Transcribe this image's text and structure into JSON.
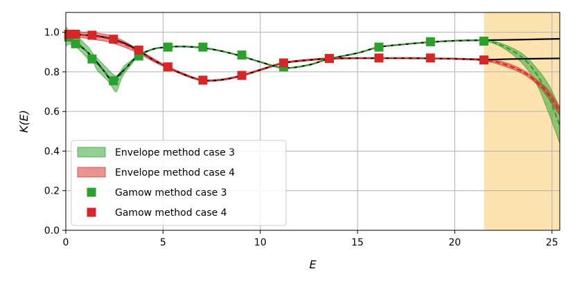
{
  "chart_data": {
    "type": "line",
    "title": "",
    "xlabel": "E",
    "ylabel": "K(E)",
    "xlim": [
      0,
      25.4
    ],
    "ylim": [
      0,
      1.1
    ],
    "x_ticks": [
      0,
      5,
      10,
      15,
      20,
      25
    ],
    "y_ticks": [
      0.0,
      0.2,
      0.4,
      0.6,
      0.8,
      1.0
    ],
    "x_tick_labels": [
      "0",
      "5",
      "10",
      "15",
      "20",
      "25"
    ],
    "y_tick_labels": [
      "0.0",
      "0.2",
      "0.4",
      "0.6",
      "0.8",
      "1.0"
    ],
    "grid": true,
    "legend_position": "lower-left",
    "highlight_region": {
      "x_from": 21.5,
      "x_to": 25.4,
      "color": "#fde3b0"
    },
    "exact_curves": [
      {
        "color": "#000000",
        "x": [
          0,
          0.5,
          1.0,
          1.5,
          2.0,
          2.4,
          3.0,
          3.7,
          4.5,
          5.2,
          6.0,
          7.0,
          8.0,
          9.0,
          10.0,
          11.2,
          12.5,
          13.5,
          15.0,
          16.1,
          17.5,
          18.7,
          20.0,
          21.5,
          23.0,
          24.5,
          25.4
        ],
        "y": [
          0.98,
          0.95,
          0.91,
          0.86,
          0.8,
          0.76,
          0.81,
          0.88,
          0.915,
          0.925,
          0.928,
          0.922,
          0.905,
          0.88,
          0.85,
          0.82,
          0.835,
          0.865,
          0.895,
          0.925,
          0.94,
          0.95,
          0.957,
          0.96,
          0.962,
          0.965,
          0.967
        ]
      },
      {
        "color": "#000000",
        "x": [
          0,
          0.5,
          1.0,
          1.3,
          2.0,
          2.4,
          3.0,
          3.7,
          4.5,
          5.2,
          6.0,
          7.0,
          8.0,
          9.0,
          10.0,
          11.2,
          12.5,
          13.5,
          15.0,
          16.1,
          17.5,
          18.7,
          20.0,
          21.5,
          23.0,
          24.5,
          25.4
        ],
        "y": [
          0.99,
          0.99,
          0.985,
          0.985,
          0.975,
          0.965,
          0.945,
          0.91,
          0.86,
          0.825,
          0.79,
          0.758,
          0.76,
          0.78,
          0.81,
          0.845,
          0.86,
          0.867,
          0.869,
          0.869,
          0.869,
          0.868,
          0.866,
          0.862,
          0.865,
          0.867,
          0.868
        ]
      }
    ],
    "series": [
      {
        "name": "Envelope method case 3",
        "kind": "band",
        "color": "#2ca02c",
        "x": [
          0,
          0.2,
          0.4,
          0.6,
          0.8,
          1.0,
          1.2,
          1.4,
          1.6,
          1.8,
          2.0,
          2.2,
          2.4,
          2.6,
          2.8,
          3.0,
          3.4,
          3.7,
          4.5,
          5.2,
          6.0,
          7.0,
          8.0,
          9.0,
          10.0,
          11.2,
          12.5,
          13.5,
          15.0,
          16.1,
          17.5,
          18.7,
          20.0,
          21.5,
          22.5,
          23.5,
          24.2,
          24.8,
          25.4
        ],
        "mean": [
          0.98,
          0.97,
          0.96,
          0.95,
          0.93,
          0.91,
          0.89,
          0.87,
          0.84,
          0.82,
          0.8,
          0.78,
          0.76,
          0.75,
          0.78,
          0.81,
          0.85,
          0.88,
          0.915,
          0.925,
          0.928,
          0.922,
          0.905,
          0.88,
          0.85,
          0.82,
          0.835,
          0.865,
          0.895,
          0.925,
          0.94,
          0.95,
          0.957,
          0.958,
          0.93,
          0.87,
          0.79,
          0.68,
          0.53
        ],
        "lower": [
          0.93,
          0.94,
          0.93,
          0.92,
          0.9,
          0.88,
          0.86,
          0.85,
          0.81,
          0.79,
          0.77,
          0.75,
          0.72,
          0.7,
          0.75,
          0.79,
          0.84,
          0.875,
          0.913,
          0.923,
          0.926,
          0.92,
          0.903,
          0.878,
          0.848,
          0.818,
          0.833,
          0.863,
          0.893,
          0.923,
          0.938,
          0.948,
          0.955,
          0.955,
          0.92,
          0.84,
          0.74,
          0.6,
          0.44
        ],
        "upper": [
          1.03,
          1.0,
          0.99,
          0.98,
          0.96,
          0.94,
          0.92,
          0.89,
          0.87,
          0.85,
          0.83,
          0.81,
          0.79,
          0.78,
          0.8,
          0.83,
          0.86,
          0.885,
          0.917,
          0.927,
          0.93,
          0.924,
          0.907,
          0.882,
          0.852,
          0.822,
          0.837,
          0.867,
          0.897,
          0.927,
          0.942,
          0.952,
          0.959,
          0.961,
          0.94,
          0.89,
          0.82,
          0.74,
          0.62
        ]
      },
      {
        "name": "Envelope method case 4",
        "kind": "band",
        "color": "#d62728",
        "x": [
          0,
          0.5,
          1.0,
          1.3,
          2.0,
          2.4,
          3.0,
          3.7,
          4.5,
          5.2,
          6.0,
          7.0,
          8.0,
          9.0,
          10.0,
          11.2,
          12.5,
          13.5,
          15.0,
          16.1,
          17.5,
          18.7,
          20.0,
          21.5,
          22.5,
          23.5,
          24.2,
          24.8,
          25.4
        ],
        "mean": [
          0.99,
          0.99,
          0.985,
          0.983,
          0.972,
          0.962,
          0.94,
          0.905,
          0.86,
          0.825,
          0.79,
          0.758,
          0.76,
          0.78,
          0.81,
          0.845,
          0.86,
          0.867,
          0.869,
          0.869,
          0.869,
          0.868,
          0.866,
          0.86,
          0.84,
          0.8,
          0.75,
          0.69,
          0.6
        ],
        "lower": [
          0.97,
          0.975,
          0.97,
          0.965,
          0.955,
          0.945,
          0.925,
          0.895,
          0.852,
          0.82,
          0.785,
          0.754,
          0.756,
          0.776,
          0.806,
          0.841,
          0.856,
          0.863,
          0.866,
          0.866,
          0.866,
          0.865,
          0.863,
          0.855,
          0.83,
          0.79,
          0.74,
          0.67,
          0.58
        ],
        "upper": [
          1.01,
          1.005,
          1.0,
          1.0,
          0.99,
          0.98,
          0.955,
          0.915,
          0.868,
          0.83,
          0.795,
          0.762,
          0.764,
          0.784,
          0.814,
          0.849,
          0.864,
          0.871,
          0.872,
          0.872,
          0.872,
          0.871,
          0.869,
          0.865,
          0.85,
          0.81,
          0.76,
          0.71,
          0.62
        ]
      },
      {
        "name": "Gamow method case 3",
        "kind": "markers",
        "color": "#2ca02c",
        "x": [
          0.15,
          0.5,
          1.35,
          2.45,
          3.75,
          5.25,
          7.05,
          9.05,
          11.2,
          13.55,
          16.1,
          18.75,
          21.5
        ],
        "y": [
          0.975,
          0.942,
          0.865,
          0.755,
          0.88,
          0.925,
          0.925,
          0.885,
          0.825,
          0.868,
          0.925,
          0.952,
          0.955
        ]
      },
      {
        "name": "Gamow method case 4",
        "kind": "markers",
        "color": "#d62728",
        "x": [
          0.15,
          0.5,
          1.35,
          2.45,
          3.75,
          5.25,
          7.05,
          9.05,
          11.2,
          13.55,
          16.1,
          18.75,
          21.5
        ],
        "y": [
          0.99,
          0.99,
          0.985,
          0.965,
          0.91,
          0.825,
          0.758,
          0.782,
          0.845,
          0.867,
          0.87,
          0.87,
          0.86
        ]
      }
    ]
  }
}
